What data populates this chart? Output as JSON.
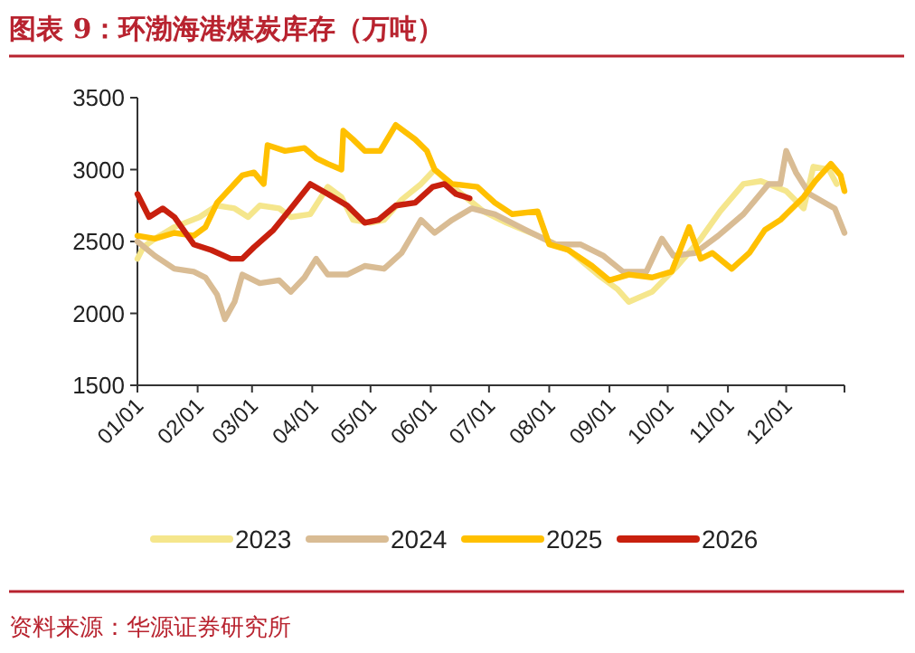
{
  "chart_data": {
    "type": "line",
    "title": "图表 9：环渤海港煤炭库存（万吨）",
    "annotations": [
      "资料来源：华源证券研究所"
    ],
    "xlim": [
      "--01-01",
      "--12-31"
    ],
    "xticks": [
      {
        "value": "--01-01",
        "label": "01/01"
      },
      {
        "value": "--02-01",
        "label": "02/01"
      },
      {
        "value": "--03-01",
        "label": "03/01"
      },
      {
        "value": "--04-01",
        "label": "04/01"
      },
      {
        "value": "--05-01",
        "label": "05/01"
      },
      {
        "value": "--06-01",
        "label": "06/01"
      },
      {
        "value": "--07-01",
        "label": "07/01"
      },
      {
        "value": "--08-01",
        "label": "08/01"
      },
      {
        "value": "--09-01",
        "label": "09/01"
      },
      {
        "value": "--10-01",
        "label": "10/01"
      },
      {
        "value": "--11-01",
        "label": "11/01"
      },
      {
        "value": "--12-01",
        "label": "12/01"
      },
      {
        "value": "--12-31",
        "label": null
      }
    ],
    "ylim": [
      1500,
      3500
    ],
    "yticks": [
      1500,
      2000,
      2500,
      3000,
      3500
    ],
    "legend": "bottom",
    "grid": false,
    "marker": "none",
    "line_style": "solid",
    "series": [
      {
        "name": "2023",
        "color": "#f5e68c",
        "x": [
          "--01-01",
          "--01-04",
          "--01-10",
          "--01-20",
          "--02-02",
          "--02-11",
          "--02-20",
          "--02-27",
          "--03-05",
          "--03-15",
          "--03-21",
          "--03-31",
          "--04-09",
          "--04-16",
          "--04-22",
          "--05-01",
          "--05-08",
          "--05-17",
          "--05-27",
          "--06-03",
          "--06-15",
          "--06-28",
          "--07-10",
          "--07-26",
          "--08-11",
          "--08-26",
          "--09-05",
          "--09-11",
          "--09-23",
          "--10-06",
          "--10-18",
          "--10-28",
          "--11-09",
          "--11-18",
          "--12-01",
          "--12-10",
          "--12-15",
          "--12-23",
          "--12-27"
        ],
        "values": [
          2380,
          2460,
          2520,
          2600,
          2670,
          2750,
          2730,
          2670,
          2750,
          2730,
          2670,
          2690,
          2880,
          2810,
          2650,
          2630,
          2650,
          2790,
          2900,
          3000,
          2850,
          2710,
          2630,
          2540,
          2440,
          2270,
          2170,
          2080,
          2150,
          2330,
          2520,
          2710,
          2900,
          2920,
          2850,
          2730,
          3020,
          3000,
          2900
        ]
      },
      {
        "name": "2024",
        "color": "#d9bc94",
        "x": [
          "--01-01",
          "--01-10",
          "--01-20",
          "--01-30",
          "--02-05",
          "--02-11",
          "--02-15",
          "--02-20",
          "--02-24",
          "--03-05",
          "--03-15",
          "--03-21",
          "--03-28",
          "--04-03",
          "--04-09",
          "--04-19",
          "--04-28",
          "--05-08",
          "--05-17",
          "--05-27",
          "--06-03",
          "--06-12",
          "--06-22",
          "--07-04",
          "--07-20",
          "--08-04",
          "--08-17",
          "--08-29",
          "--09-08",
          "--09-20",
          "--09-28",
          "--10-04",
          "--10-15",
          "--10-27",
          "--11-09",
          "--11-22",
          "--11-28",
          "--12-01",
          "--12-06",
          "--12-13",
          "--12-26",
          "--12-31"
        ],
        "values": [
          2500,
          2400,
          2310,
          2290,
          2250,
          2130,
          1960,
          2080,
          2270,
          2210,
          2230,
          2150,
          2250,
          2380,
          2270,
          2270,
          2330,
          2310,
          2420,
          2650,
          2560,
          2650,
          2730,
          2690,
          2580,
          2480,
          2480,
          2400,
          2290,
          2290,
          2520,
          2400,
          2420,
          2540,
          2690,
          2900,
          2900,
          3130,
          2980,
          2830,
          2730,
          2560
        ]
      },
      {
        "name": "2025",
        "color": "#ffc000",
        "x": [
          "--01-01",
          "--01-10",
          "--01-20",
          "--01-30",
          "--02-05",
          "--02-11",
          "--02-24",
          "--03-02",
          "--03-07",
          "--03-09",
          "--03-18",
          "--03-28",
          "--04-03",
          "--04-09",
          "--04-16",
          "--04-17",
          "--04-22",
          "--04-28",
          "--05-06",
          "--05-14",
          "--05-24",
          "--05-30",
          "--06-03",
          "--06-12",
          "--06-25",
          "--07-04",
          "--07-13",
          "--07-26",
          "--08-01",
          "--08-11",
          "--08-23",
          "--09-01",
          "--09-11",
          "--09-23",
          "--10-03",
          "--10-12",
          "--10-18",
          "--10-24",
          "--11-03",
          "--11-12",
          "--11-20",
          "--11-28",
          "--12-10",
          "--12-16",
          "--12-24",
          "--12-29",
          "--12-31"
        ],
        "values": [
          2540,
          2520,
          2560,
          2540,
          2600,
          2770,
          2960,
          2980,
          2900,
          3170,
          3130,
          3150,
          3080,
          3040,
          3000,
          3270,
          3210,
          3130,
          3130,
          3310,
          3210,
          3130,
          3000,
          2900,
          2880,
          2770,
          2690,
          2710,
          2480,
          2440,
          2330,
          2230,
          2270,
          2250,
          2290,
          2600,
          2380,
          2420,
          2310,
          2420,
          2580,
          2650,
          2810,
          2920,
          3040,
          2960,
          2850
        ]
      },
      {
        "name": "2026",
        "color": "#c8200e",
        "x": [
          "--01-01",
          "--01-07",
          "--01-14",
          "--01-20",
          "--01-30",
          "--02-08",
          "--02-18",
          "--02-24",
          "--03-02",
          "--03-12",
          "--03-21",
          "--03-31",
          "--04-09",
          "--04-19",
          "--04-28",
          "--05-05",
          "--05-14",
          "--05-24",
          "--06-02",
          "--06-08",
          "--06-14",
          "--06-21"
        ],
        "values": [
          2830,
          2670,
          2730,
          2670,
          2480,
          2440,
          2380,
          2380,
          2460,
          2580,
          2730,
          2900,
          2830,
          2750,
          2630,
          2650,
          2750,
          2770,
          2880,
          2900,
          2830,
          2800
        ]
      }
    ]
  }
}
